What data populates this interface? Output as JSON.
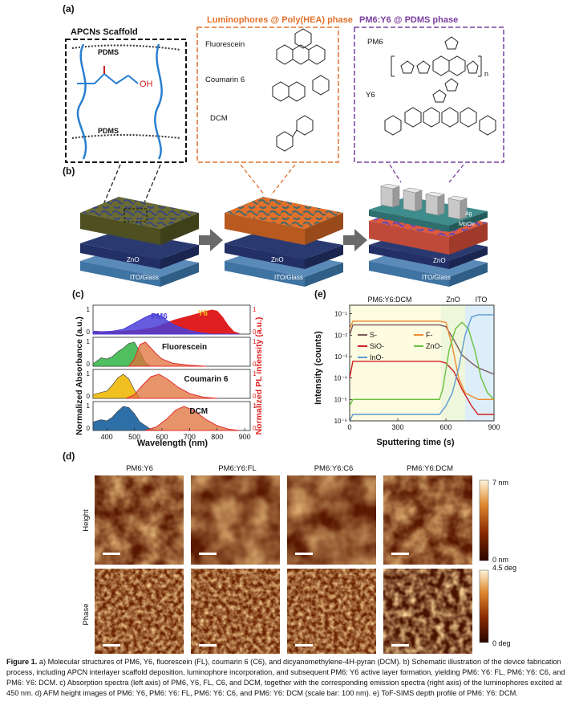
{
  "figure": {
    "panel_labels": {
      "a": "(a)",
      "b": "(b)",
      "c": "(c)",
      "d": "(d)",
      "e": "(e)"
    }
  },
  "panel_a": {
    "scaffold_title": "APCNs Scaffold",
    "pdms_label": "PDMS",
    "oh_label": "OH",
    "luminophore_title": "Luminophores @ Poly(HEA) phase",
    "luminophores": [
      "Fluorescein",
      "Coumarin 6",
      "DCM"
    ],
    "active_title": "PM6:Y6 @ PDMS phase",
    "active_items": [
      "PM6",
      "Y6"
    ],
    "n_label": "n"
  },
  "panel_b": {
    "layers_left": [
      "ZnO",
      "ITO/Glass"
    ],
    "layers_mid": [
      "ZnO",
      "ITO/Glass"
    ],
    "layers_right": [
      "Ag",
      "MoOx",
      "ZnO",
      "ITO/Glass"
    ]
  },
  "chart_data": [
    {
      "type": "area",
      "panel": "c",
      "xlabel": "Wavelength (nm)",
      "ylabel_left": "Normalized Absorbance (a.u.)",
      "ylabel_right": "Normalized PL intensity (a.u.)",
      "x_ticks": [
        400,
        500,
        600,
        700,
        800,
        900
      ],
      "x_range": [
        350,
        920
      ],
      "right_ticks": [
        "1",
        "0"
      ],
      "left_ticks": [
        "1",
        "0"
      ],
      "subplots": [
        {
          "name": "PM6:Y6",
          "labels": [
            "PM6",
            "Y6"
          ],
          "absorbance": {
            "x": [
              350,
              380,
              420,
              460,
              500,
              540,
              560,
              580,
              600,
              620,
              650,
              700,
              740,
              780,
              800,
              820,
              840,
              860,
              880
            ],
            "PM6": [
              0.12,
              0.1,
              0.12,
              0.2,
              0.45,
              0.7,
              0.8,
              0.82,
              0.72,
              0.55,
              0.35,
              0.15,
              0.05,
              0.0,
              0.0,
              0.0,
              0.0,
              0.0,
              0.0
            ],
            "Y6": [
              0.12,
              0.1,
              0.1,
              0.12,
              0.15,
              0.2,
              0.25,
              0.3,
              0.38,
              0.48,
              0.6,
              0.75,
              0.88,
              1.0,
              0.95,
              0.7,
              0.35,
              0.1,
              0.02
            ]
          }
        },
        {
          "name": "Fluorescein",
          "label": "Fluorescein",
          "absorbance": {
            "x": [
              350,
              380,
              400,
              420,
              440,
              460,
              480,
              500,
              520,
              540,
              560
            ],
            "y": [
              0.1,
              0.35,
              0.3,
              0.4,
              0.6,
              0.75,
              0.95,
              1.0,
              0.6,
              0.15,
              0.0
            ]
          },
          "emission": {
            "x": [
              480,
              500,
              520,
              540,
              560,
              580,
              600,
              640,
              700,
              760
            ],
            "y": [
              0.0,
              0.3,
              0.9,
              1.0,
              0.75,
              0.5,
              0.3,
              0.12,
              0.04,
              0.0
            ]
          }
        },
        {
          "name": "Coumarin 6",
          "label": "Coumarin 6",
          "absorbance": {
            "x": [
              350,
              380,
              400,
              420,
              440,
              460,
              480,
              500,
              520
            ],
            "y": [
              0.15,
              0.25,
              0.3,
              0.55,
              0.85,
              1.0,
              0.8,
              0.35,
              0.0
            ]
          },
          "emission": {
            "x": [
              470,
              500,
              530,
              560,
              590,
              620,
              660,
              700,
              750,
              800
            ],
            "y": [
              0.0,
              0.15,
              0.55,
              0.9,
              1.0,
              0.8,
              0.45,
              0.2,
              0.05,
              0.0
            ]
          }
        },
        {
          "name": "DCM",
          "label": "DCM",
          "absorbance": {
            "x": [
              350,
              380,
              400,
              420,
              440,
              460,
              480,
              500,
              520,
              560,
              600
            ],
            "y": [
              0.35,
              0.45,
              0.4,
              0.55,
              0.8,
              1.0,
              0.95,
              0.7,
              0.35,
              0.05,
              0.0
            ]
          },
          "emission": {
            "x": [
              540,
              580,
              620,
              650,
              680,
              720,
              760,
              800,
              840,
              880
            ],
            "y": [
              0.0,
              0.15,
              0.5,
              0.85,
              1.0,
              0.8,
              0.45,
              0.2,
              0.06,
              0.0
            ]
          }
        }
      ],
      "colors": {
        "pm6": "#4a3fd8",
        "y6": "#e02020",
        "fluorescein": "#4fbf5f",
        "coumarin": "#f0c020",
        "dcm": "#2f6fa8",
        "emission": "#e03030",
        "emission_fill": "#e0703a"
      }
    },
    {
      "type": "line",
      "panel": "e",
      "title": "PM6:Y6:DCM",
      "region_labels": [
        "PM6:Y6:DCM",
        "ZnO",
        "ITO"
      ],
      "xlabel": "Sputtering time (s)",
      "ylabel": "Intensity (counts)",
      "log_y": true,
      "x_range": [
        0,
        900
      ],
      "x_ticks": [
        0,
        300,
        600,
        900
      ],
      "y_ticks": [
        "10⁻⁶",
        "10⁻⁵",
        "10⁻⁴",
        "10⁻³",
        "10⁻²",
        "10⁻¹"
      ],
      "series": [
        {
          "name": "S-",
          "color": "#7a5a5a",
          "x": [
            0,
            20,
            100,
            300,
            500,
            560,
            600,
            650,
            700,
            760,
            800,
            900
          ],
          "y": [
            0.01,
            0.03,
            0.03,
            0.03,
            0.03,
            0.03,
            0.025,
            0.006,
            0.0012,
            0.0005,
            0.0003,
            0.00015
          ]
        },
        {
          "name": "F-",
          "color": "#f08a30",
          "x": [
            0,
            20,
            100,
            300,
            500,
            560,
            600,
            640,
            680,
            720,
            800,
            900
          ],
          "y": [
            0.02,
            0.045,
            0.045,
            0.045,
            0.045,
            0.045,
            0.04,
            0.003,
            0.0001,
            2e-05,
            1e-05,
            1e-05
          ]
        },
        {
          "name": "SiO-",
          "color": "#d02020",
          "x": [
            0,
            20,
            100,
            300,
            500,
            560,
            600,
            650,
            700,
            760,
            800,
            850,
            900
          ],
          "y": [
            0.0001,
            0.0006,
            0.0006,
            0.0006,
            0.0006,
            0.0006,
            0.0005,
            0.0002,
            3e-05,
            5e-06,
            2e-06,
            2e-06,
            2e-06
          ]
        },
        {
          "name": "ZnO-",
          "color": "#6ac040",
          "x": [
            0,
            20,
            100,
            300,
            500,
            560,
            580,
            620,
            660,
            700,
            740,
            780,
            820,
            860,
            900
          ],
          "y": [
            5e-06,
            1e-05,
            1e-05,
            1e-05,
            1e-05,
            1e-05,
            3e-05,
            0.002,
            0.02,
            0.04,
            0.02,
            0.002,
            0.0001,
            2e-05,
            1e-05
          ]
        },
        {
          "name": "InO-",
          "color": "#5a9ad0",
          "x": [
            0,
            20,
            100,
            300,
            500,
            560,
            600,
            640,
            680,
            720,
            760,
            800,
            850,
            900
          ],
          "y": [
            1e-06,
            2e-06,
            2e-06,
            2e-06,
            2e-06,
            2e-06,
            5e-06,
            2e-05,
            0.0003,
            0.01,
            0.07,
            0.09,
            0.09,
            0.09
          ]
        }
      ],
      "legend": [
        "S-",
        "F-",
        "SiO-",
        "ZnO-",
        "InO-"
      ]
    }
  ],
  "panel_d": {
    "columns": [
      "PM6:Y6",
      "PM6:Y6:FL",
      "PM6:Y6:C6",
      "PM6:Y6:DCM"
    ],
    "rows": [
      "Height",
      "Phase"
    ],
    "height_scale": {
      "top": "7 nm",
      "bottom": "0 nm"
    },
    "phase_scale": {
      "top": "4.5 deg",
      "bottom": "0 deg"
    }
  },
  "caption": {
    "label": "Figure 1.",
    "text": "a) Molecular structures of PM6, Y6, fluorescein (FL), coumarin 6 (C6), and dicyanomethylene-4H-pyran (DCM). b) Schematic illustration of the device fabrication process, including APCN interlayer scaffold deposition, luminophore incorporation, and subsequent PM6: Y6 active layer formation, yielding PM6: Y6: FL, PM6: Y6: C6, and PM6: Y6: DCM. c) Absorption spectra (left axis) of PM6, Y6, FL, C6, and DCM, together with the corresponding emission spectra (right axis) of the luminophores excited at 450 nm. d) AFM height images of PM6: Y6, PM6: Y6: FL, PM6: Y6: C6, and PM6: Y6: DCM (scale bar: 100 nm). e) ToF-SIMS depth profile of PM6: Y6: DCM."
  }
}
